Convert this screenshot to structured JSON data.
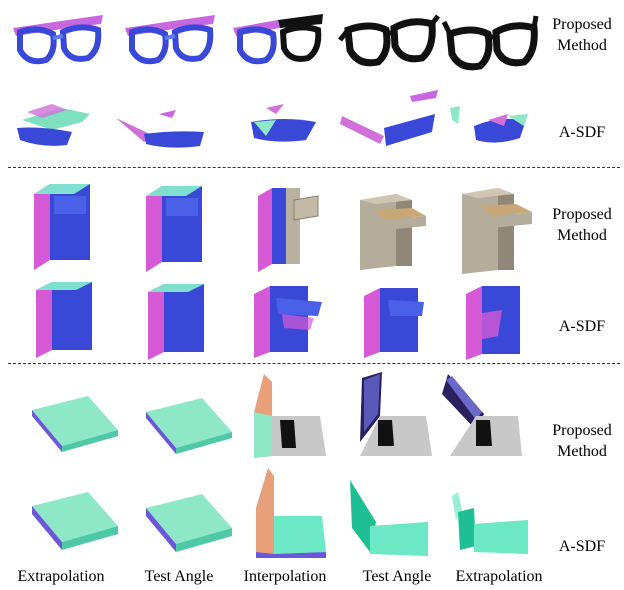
{
  "row_labels": {
    "glasses_proposed": "Proposed\nMethod",
    "glasses_asdf": "A-SDF",
    "cabinet_proposed": "Proposed\nMethod",
    "cabinet_asdf": "A-SDF",
    "laptop_proposed": "Proposed\nMethod",
    "laptop_asdf": "A-SDF"
  },
  "column_labels": [
    "Extrapolation",
    "Test Angle",
    "Interpolation",
    "Test Angle",
    "Extrapolation"
  ],
  "colors": {
    "normal_blue": "#3a48d8",
    "normal_magenta": "#d85ad8",
    "normal_teal": "#4fe0c0",
    "normal_green": "#8ee8c8",
    "real_black": "#111111",
    "real_beige": "#b9b1a0",
    "real_gray": "#c8c8c8"
  }
}
